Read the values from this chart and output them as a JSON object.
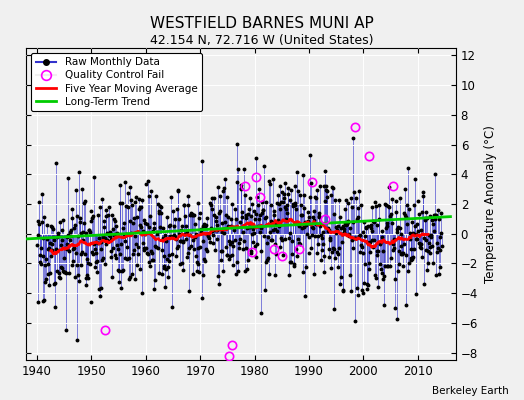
{
  "title": "WESTFIELD BARNES MUNI AP",
  "subtitle": "42.154 N, 72.716 W (United States)",
  "ylabel": "Temperature Anomaly (°C)",
  "credit": "Berkeley Earth",
  "xlim": [
    1938,
    2017
  ],
  "ylim": [
    -8.5,
    12.5
  ],
  "yticks": [
    -8,
    -6,
    -4,
    -2,
    0,
    2,
    4,
    6,
    8,
    10,
    12
  ],
  "xticks": [
    1940,
    1950,
    1960,
    1970,
    1980,
    1990,
    2000,
    2010
  ],
  "bg_color": "#f0f0f0",
  "raw_color": "#3333cc",
  "qc_color": "#ff00ff",
  "moving_avg_color": "#ff0000",
  "trend_color": "#00cc00",
  "seed": 17
}
